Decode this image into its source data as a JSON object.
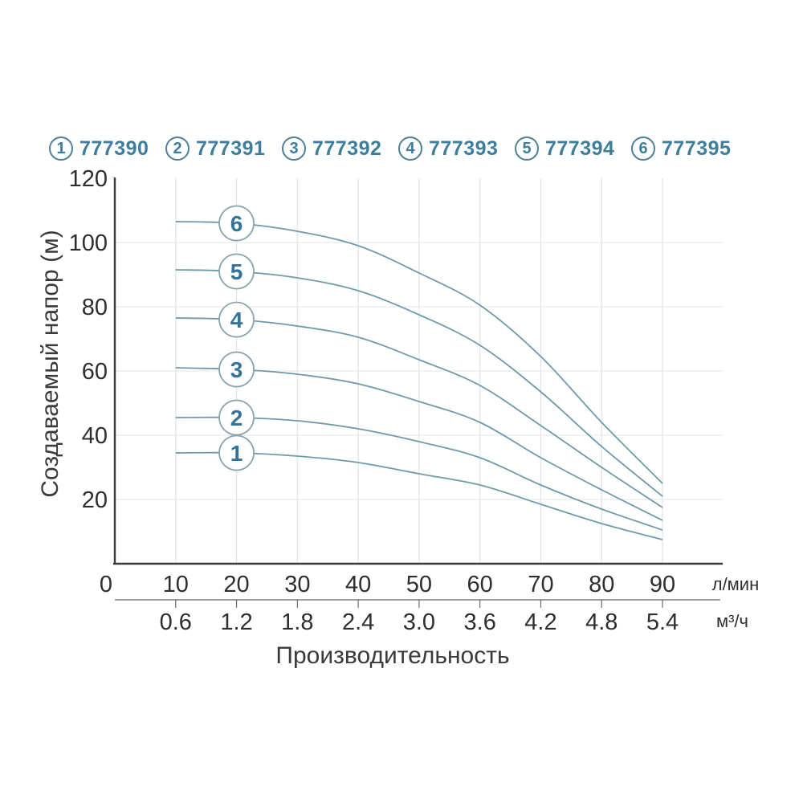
{
  "colors": {
    "accent_text": "#3e7d9b",
    "legend_circle_border": "#4c8099",
    "curve_stroke": "#6e9aab",
    "curve_circle_border": "#8ba3af",
    "curve_circle_number": "#35749a",
    "grid_vertical": "#dfe5ea",
    "grid_horizontal": "#e9e9e9",
    "axis": "#3a3a3a",
    "tick_text": "#2e2e2e",
    "secondary_axis": "#6a6a6a"
  },
  "legend": {
    "items": [
      {
        "num": "1",
        "article": "777390"
      },
      {
        "num": "2",
        "article": "777391"
      },
      {
        "num": "3",
        "article": "777392"
      },
      {
        "num": "4",
        "article": "777393"
      },
      {
        "num": "5",
        "article": "777394"
      },
      {
        "num": "6",
        "article": "777395"
      }
    ]
  },
  "chart_data": {
    "type": "line",
    "title": "",
    "xlabel": "Производительность",
    "ylabel": "Создаваемый напор (м)",
    "x_unit_primary": "л/мин",
    "x_unit_secondary": "м³/ч",
    "xlim": [
      0,
      95
    ],
    "ylim": [
      0,
      120
    ],
    "grid": true,
    "x_ticks_primary": [
      0,
      10,
      20,
      30,
      40,
      50,
      60,
      70,
      80,
      90
    ],
    "x_ticks_secondary": {
      "positions": [
        10,
        20,
        30,
        40,
        50,
        60,
        70,
        80,
        90
      ],
      "labels": [
        "0.6",
        "1.2",
        "1.8",
        "2.4",
        "3.0",
        "3.6",
        "4.2",
        "4.8",
        "5.4"
      ]
    },
    "y_ticks": [
      20,
      40,
      60,
      80,
      100,
      120
    ],
    "x": [
      10,
      20,
      30,
      40,
      50,
      60,
      70,
      80,
      90
    ],
    "series": [
      {
        "name": "1",
        "article": "777390",
        "values": [
          34.5,
          34.5,
          33.5,
          31.5,
          28,
          24.5,
          18.5,
          12.5,
          7.5
        ]
      },
      {
        "name": "2",
        "article": "777391",
        "values": [
          45.5,
          45.5,
          44.5,
          42,
          38,
          33,
          24.5,
          17,
          10.5
        ]
      },
      {
        "name": "3",
        "article": "777392",
        "values": [
          61,
          60.5,
          59,
          56,
          50.5,
          44,
          33,
          23,
          13.5
        ]
      },
      {
        "name": "4",
        "article": "777393",
        "values": [
          76.5,
          76,
          74,
          70.5,
          63.5,
          55.5,
          43,
          30,
          17.5
        ]
      },
      {
        "name": "5",
        "article": "777394",
        "values": [
          91.5,
          91,
          89,
          85,
          77.5,
          68,
          53.5,
          36.5,
          21
        ]
      },
      {
        "name": "6",
        "article": "777395",
        "values": [
          106.5,
          106,
          103.5,
          99,
          90.5,
          80.5,
          64.5,
          44,
          25
        ]
      }
    ],
    "curve_label_x": 20,
    "legend_position": "top"
  }
}
